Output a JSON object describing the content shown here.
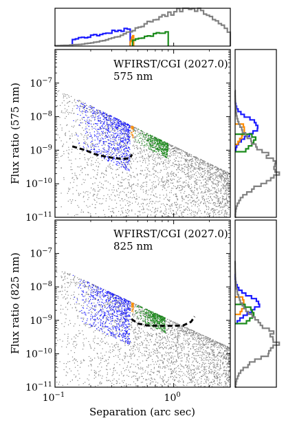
{
  "chart_data": [
    {
      "type": "histogram",
      "panel": "top-marginal",
      "description_axis": "separation (log scale, shared with main panels)",
      "series": [
        {
          "name": "blue",
          "color": "#1a1aff",
          "x_range": [
            0.14,
            0.43
          ],
          "peak_relative": 0.47
        },
        {
          "name": "orange",
          "color": "#ff8c00",
          "x_range": [
            0.43,
            0.46
          ],
          "peak_relative": 0.3
        },
        {
          "name": "green",
          "color": "#1a8a1a",
          "x_range": [
            0.45,
            0.9
          ],
          "peak_relative": 0.4
        },
        {
          "name": "gray",
          "color": "#808080",
          "x_range": [
            0.1,
            3.0
          ],
          "peak_relative": 1.0,
          "peak_x": 1.5
        }
      ]
    },
    {
      "type": "scatter",
      "panel": "upper",
      "annotation": [
        "WFIRST/CGI (2027.0)",
        "575 nm"
      ],
      "ylabel": "Flux ratio (575 nm)",
      "xscale": "log",
      "yscale": "log",
      "xlim": [
        0.1,
        3.0
      ],
      "ylim": [
        1e-11,
        1e-06
      ],
      "yticks": [
        {
          "value": 1e-11,
          "base": "10",
          "exp": "−11"
        },
        {
          "value": 1e-10,
          "base": "10",
          "exp": "−10"
        },
        {
          "value": 1e-09,
          "base": "10",
          "exp": "−9"
        },
        {
          "value": 1e-08,
          "base": "10",
          "exp": "−8"
        },
        {
          "value": 1e-07,
          "base": "10",
          "exp": "−7"
        }
      ],
      "upper_envelope": [
        [
          0.12,
          5e-08
        ],
        [
          3.0,
          2e-10
        ]
      ],
      "point_groups": [
        {
          "name": "blue",
          "color": "#1a1aff",
          "x_range": [
            0.14,
            0.43
          ],
          "y_band_decades": 1.4
        },
        {
          "name": "orange",
          "color": "#ff8c00",
          "x_range": [
            0.43,
            0.46
          ],
          "y_band_decades": 0.35
        },
        {
          "name": "green",
          "color": "#1a8a1a",
          "x_range": [
            0.45,
            0.9
          ],
          "y_band_decades": 0.45
        },
        {
          "name": "gray",
          "color": "#808080",
          "x_range": [
            0.1,
            3.0
          ],
          "y_floor": 1e-11
        }
      ],
      "contrast_curve": {
        "style": "dashed",
        "color": "#000000",
        "x": [
          0.14,
          0.18,
          0.22,
          0.28,
          0.35,
          0.4,
          0.43,
          0.445
        ],
        "y": [
          1.3e-09,
          1e-09,
          7.5e-10,
          6.2e-10,
          5.6e-10,
          5.6e-10,
          5.9e-10,
          7.5e-10
        ]
      }
    },
    {
      "type": "scatter",
      "panel": "lower",
      "annotation": [
        "WFIRST/CGI (2027.0)",
        "825 nm"
      ],
      "ylabel": "Flux ratio (825 nm)",
      "xlabel": "Separation (arc sec)",
      "xscale": "log",
      "yscale": "log",
      "xlim": [
        0.1,
        3.0
      ],
      "ylim": [
        1e-11,
        1e-06
      ],
      "xticks": [
        {
          "value": 0.1,
          "base": "10",
          "exp": "−1"
        },
        {
          "value": 1.0,
          "base": "10",
          "exp": "0"
        }
      ],
      "yticks": [
        {
          "value": 1e-11,
          "base": "10",
          "exp": "−11"
        },
        {
          "value": 1e-10,
          "base": "10",
          "exp": "−10"
        },
        {
          "value": 1e-09,
          "base": "10",
          "exp": "−9"
        },
        {
          "value": 1e-08,
          "base": "10",
          "exp": "−8"
        },
        {
          "value": 1e-07,
          "base": "10",
          "exp": "−7"
        }
      ],
      "upper_envelope": [
        [
          0.1,
          4e-08
        ],
        [
          3.0,
          1.5e-10
        ]
      ],
      "point_groups": [
        {
          "name": "blue",
          "color": "#1a1aff",
          "x_range": [
            0.14,
            0.43
          ],
          "y_band_decades": 1.3
        },
        {
          "name": "orange",
          "color": "#ff8c00",
          "x_range": [
            0.43,
            0.46
          ],
          "y_band_decades": 0.35
        },
        {
          "name": "green",
          "color": "#1a8a1a",
          "x_range": [
            0.45,
            0.85
          ],
          "y_band_decades": 0.45
        },
        {
          "name": "gray",
          "color": "#808080",
          "x_range": [
            0.1,
            3.0
          ],
          "y_floor": 1e-11
        }
      ],
      "contrast_curve": {
        "style": "dashed",
        "color": "#000000",
        "x": [
          0.44,
          0.5,
          0.6,
          0.75,
          0.95,
          1.2,
          1.4,
          1.5
        ],
        "y": [
          1.1e-09,
          8e-10,
          7e-10,
          6.8e-10,
          6.8e-10,
          7e-10,
          9e-10,
          1.3e-09
        ]
      }
    },
    {
      "type": "histogram",
      "panel": "right-marginal-upper",
      "orientation": "horizontal",
      "description_axis": "flux ratio 575 nm (log scale)",
      "series": [
        {
          "name": "blue",
          "color": "#1a1aff",
          "y_range": [
            1e-09,
            3e-08
          ],
          "peak_y": 5e-09,
          "peak_relative": 0.55
        },
        {
          "name": "orange",
          "color": "#ff8c00",
          "y_range": [
            1.5e-09,
            6e-09
          ],
          "peak_y": 4e-09,
          "peak_relative": 0.22
        },
        {
          "name": "green",
          "color": "#1a8a1a",
          "y_range": [
            9e-10,
            3e-09
          ],
          "peak_y": 2e-09,
          "peak_relative": 0.5
        },
        {
          "name": "gray",
          "color": "#808080",
          "y_range": [
            1e-11,
            6e-08
          ],
          "peak_y": 2.5e-10,
          "peak_relative": 1.0
        }
      ]
    },
    {
      "type": "histogram",
      "panel": "right-marginal-lower",
      "orientation": "horizontal",
      "description_axis": "flux ratio 825 nm (log scale)",
      "series": [
        {
          "name": "blue",
          "color": "#1a1aff",
          "y_range": [
            8e-10,
            2.5e-08
          ],
          "peak_y": 3e-09,
          "peak_relative": 0.55
        },
        {
          "name": "orange",
          "color": "#ff8c00",
          "y_range": [
            1.5e-09,
            5e-09
          ],
          "peak_y": 3e-09,
          "peak_relative": 0.22
        },
        {
          "name": "green",
          "color": "#1a8a1a",
          "y_range": [
            8e-10,
            3e-09
          ],
          "peak_y": 1.5e-09,
          "peak_relative": 0.45
        },
        {
          "name": "gray",
          "color": "#808080",
          "y_range": [
            1e-11,
            6e-08
          ],
          "peak_y": 2e-10,
          "peak_relative": 1.0
        }
      ]
    }
  ]
}
